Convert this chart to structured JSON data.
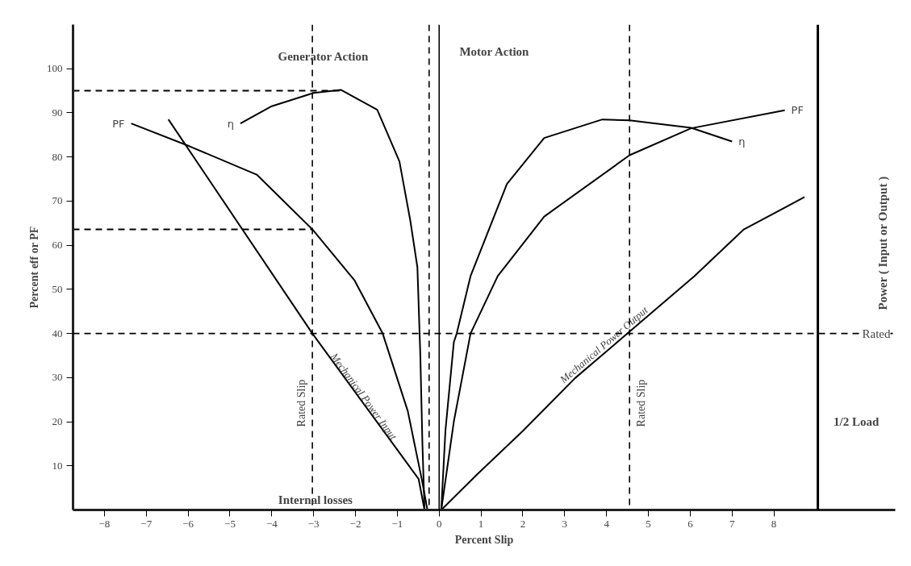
{
  "chart_data": {
    "type": "line",
    "xlabel": "Percent Slip",
    "ylabel": "Percent eff or PF",
    "xlim": [
      -8.75,
      10.9
    ],
    "xticks": [
      -8,
      -7,
      -6,
      -5,
      -4,
      -3,
      -2,
      -1,
      0,
      1,
      2,
      3,
      4,
      5,
      6,
      7,
      8
    ],
    "ylim": [
      0,
      110
    ],
    "yticks": [
      10,
      20,
      30,
      40,
      50,
      60,
      70,
      80,
      90,
      100
    ],
    "grid": false,
    "marker": "none",
    "series": [
      {
        "name": "η",
        "color": "#000000",
        "x": [
          -4.75,
          -4,
          -3,
          -2.35,
          -1.48,
          -0.95,
          -0.69,
          -0.52,
          -0.45,
          -0.4,
          -0.35
        ],
        "values": [
          87.6,
          91.5,
          94.5,
          95.2,
          90.7,
          79,
          65.6,
          55,
          35,
          15,
          0
        ]
      },
      {
        "name": "PF",
        "color": "#000000",
        "x": [
          -7.36,
          -5.96,
          -4.36,
          -3.03,
          -2.02,
          -1.35,
          -0.75,
          -0.41,
          -0.28
        ],
        "values": [
          87.6,
          82.4,
          76,
          63.6,
          52,
          40,
          22.4,
          6.7,
          0
        ]
      },
      {
        "name": "η",
        "color": "#000000",
        "x": [
          0.05,
          0.15,
          0.35,
          0.42,
          0.75,
          1.62,
          2.51,
          3.9,
          4.55,
          6.02,
          7.0
        ],
        "values": [
          0,
          18,
          38,
          40,
          53,
          73.9,
          84.3,
          88.5,
          88.3,
          86.6,
          83.5
        ]
      },
      {
        "name": "PF",
        "color": "#000000",
        "x": [
          0.05,
          0.35,
          0.75,
          1.4,
          2.51,
          4.55,
          6.02,
          8.26
        ],
        "values": [
          0,
          20,
          40,
          53,
          66.5,
          80.4,
          86.5,
          90.6
        ]
      },
      {
        "name": "Mechanical Power Input",
        "color": "#000000",
        "x": [
          -6.47,
          -3.03,
          -0.49,
          -0.35
        ],
        "values": [
          88.5,
          40,
          7,
          0
        ]
      },
      {
        "name": "Mechanical Power Output",
        "color": "#000000",
        "x": [
          0.05,
          0.9,
          2.0,
          3.25,
          4.5,
          6.1,
          7.27,
          8.73
        ],
        "values": [
          0,
          8,
          17.9,
          29.9,
          40,
          53,
          63.5,
          70.9
        ]
      },
      {
        "color": "#000000",
        "line_style": "dashed",
        "x": [
          -8.75,
          -2.35
        ],
        "values": [
          95,
          95
        ]
      },
      {
        "color": "#000000",
        "line_style": "dashed",
        "x": [
          -8.75,
          -3.03
        ],
        "values": [
          63.6,
          63.6
        ]
      }
    ],
    "ref_lines": [
      {
        "axis": "x",
        "value": -3.03,
        "label": "Rated Slip",
        "line_style": "dashed"
      },
      {
        "axis": "x",
        "value": 4.55,
        "label": "Rated Slip",
        "line_style": "dashed"
      },
      {
        "axis": "y",
        "value": 40,
        "label": "Rated",
        "line_style": "dashed"
      },
      {
        "axis": "x",
        "value": -0.24,
        "line_style": "dashed"
      },
      {
        "axis": "x",
        "value": 0,
        "line_style": "solid"
      },
      {
        "axis": "x",
        "value": 9.05,
        "line_style": "solid"
      }
    ],
    "annotations": [
      "Generator Action",
      "Motor Action",
      "Internal losses",
      "1/2 Load",
      "Power ( Input or Output )"
    ]
  }
}
